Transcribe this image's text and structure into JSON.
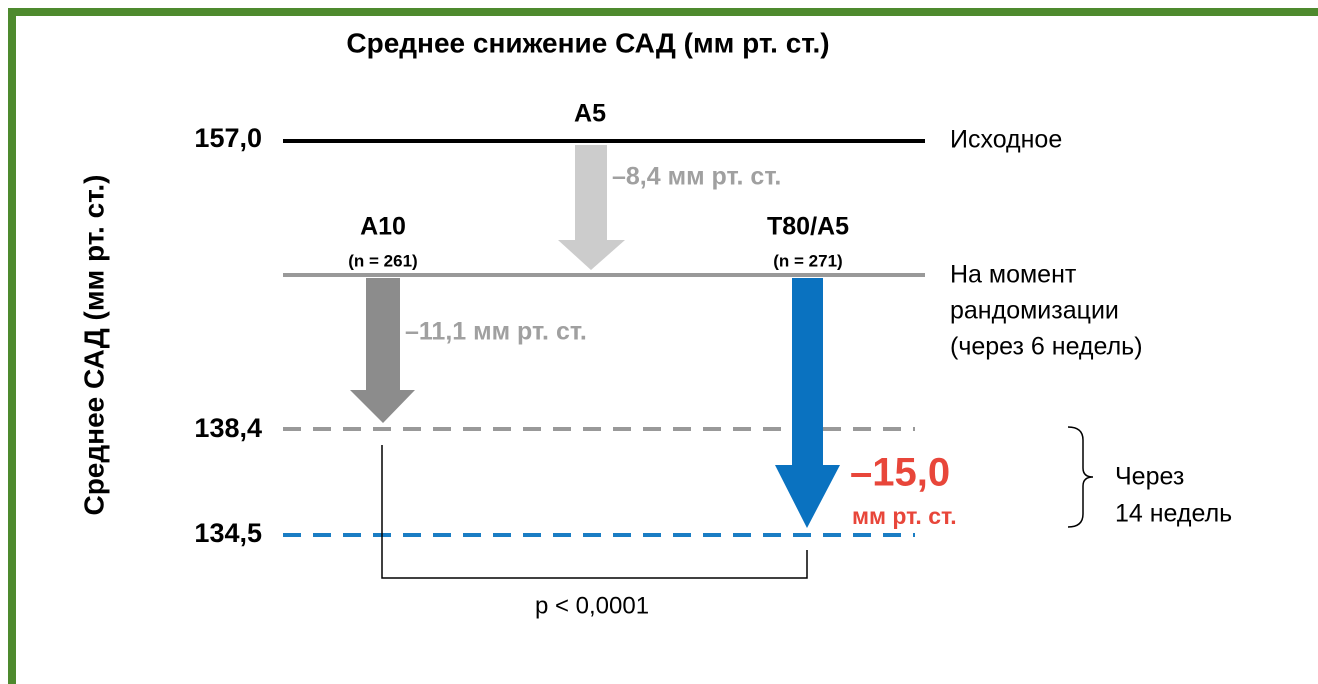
{
  "title": "Среднее снижение САД (мм рт. ст.)",
  "y_axis_label": "Среднее САД (мм рт. ст.)",
  "levels": [
    "157,0",
    "138,4",
    "134,5"
  ],
  "level_labels": {
    "baseline": "Исходное",
    "randomization": [
      "На момент",
      "рандомизации",
      "(через 6 недель)"
    ],
    "end": [
      "Через",
      "14 недель"
    ]
  },
  "groups": {
    "a5": {
      "name": "A5",
      "change": "–8,4 мм рт. ст."
    },
    "a10": {
      "name": "A10",
      "n": "(n = 261)",
      "change": "–11,1 мм рт. ст."
    },
    "t80a5": {
      "name": "T80/A5",
      "n": "(n = 271)",
      "change": "–15,0",
      "unit": "мм рт. ст."
    }
  },
  "p_value": "p < 0,0001"
}
